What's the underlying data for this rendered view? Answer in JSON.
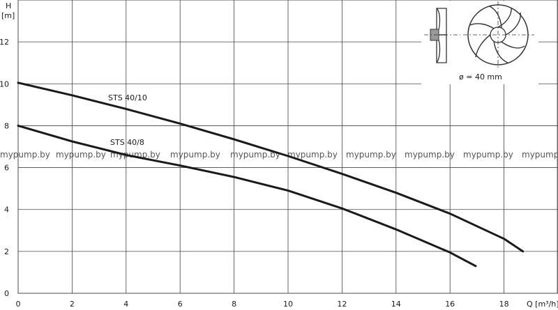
{
  "chart_data": {
    "type": "line",
    "x_axis": {
      "label": "Q [m³/h]",
      "range": [
        0,
        20
      ],
      "ticks": [
        0,
        2,
        4,
        6,
        8,
        10,
        12,
        14,
        16,
        18
      ]
    },
    "y_axis": {
      "label_top": "H",
      "label_unit": "[m]",
      "range": [
        0,
        14
      ],
      "ticks": [
        0,
        2,
        4,
        6,
        8,
        10,
        12
      ]
    },
    "grid": true,
    "series": [
      {
        "name": "STS 40/10",
        "points": [
          [
            0,
            10.05
          ],
          [
            2,
            9.45
          ],
          [
            4,
            8.8
          ],
          [
            6,
            8.1
          ],
          [
            8,
            7.35
          ],
          [
            10,
            6.55
          ],
          [
            12,
            5.7
          ],
          [
            14,
            4.8
          ],
          [
            16,
            3.8
          ],
          [
            18,
            2.6
          ],
          [
            18.7,
            2.0
          ]
        ]
      },
      {
        "name": "STS 40/8",
        "points": [
          [
            0,
            8.0
          ],
          [
            2,
            7.25
          ],
          [
            4,
            6.6
          ],
          [
            6,
            6.1
          ],
          [
            8,
            5.55
          ],
          [
            10,
            4.9
          ],
          [
            12,
            4.05
          ],
          [
            14,
            3.05
          ],
          [
            16,
            1.95
          ],
          [
            16.95,
            1.3
          ]
        ]
      }
    ],
    "annotation": "ø = 40 mm",
    "watermark": "mypump.by"
  }
}
